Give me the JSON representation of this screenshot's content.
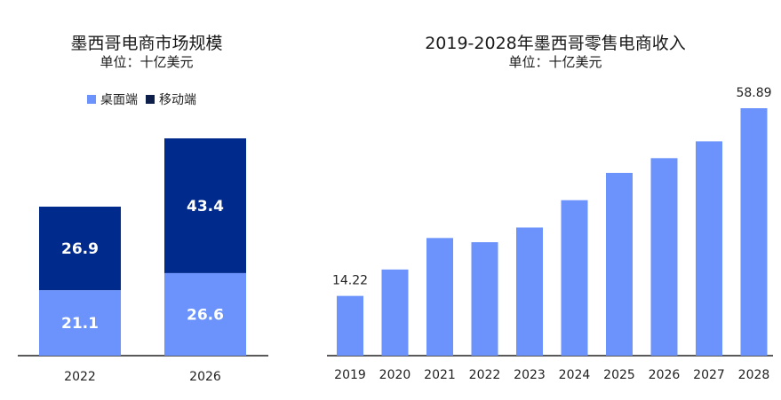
{
  "chart_data": [
    {
      "type": "bar",
      "stacked": true,
      "title": "墨西哥电商市场规模",
      "subtitle": "单位：十亿美元",
      "categories": [
        "2022",
        "2026"
      ],
      "series": [
        {
          "name": "桌面端",
          "values": [
            21.1,
            26.6
          ],
          "color": "#6b93fb"
        },
        {
          "name": "移动端",
          "values": [
            26.9,
            43.4
          ],
          "color": "#002a8c"
        }
      ],
      "value_labels": [
        "21.1",
        "26.6",
        "26.9",
        "43.4"
      ],
      "legend_position": "top-center",
      "ylim": [
        0,
        75
      ],
      "grid": false
    },
    {
      "type": "bar",
      "title": "2019-2028年墨西哥零售电商收入",
      "subtitle": "单位：十亿美元",
      "categories": [
        "2019",
        "2020",
        "2021",
        "2022",
        "2023",
        "2024",
        "2025",
        "2026",
        "2027",
        "2028"
      ],
      "values": [
        14.22,
        20.5,
        28.0,
        27.0,
        30.5,
        37.0,
        43.5,
        47.0,
        51.0,
        58.89
      ],
      "labeled_points": {
        "2019": "14.22",
        "2028": "58.89"
      },
      "color": "#6b93fb",
      "ylim": [
        0,
        63
      ],
      "grid": false
    }
  ]
}
